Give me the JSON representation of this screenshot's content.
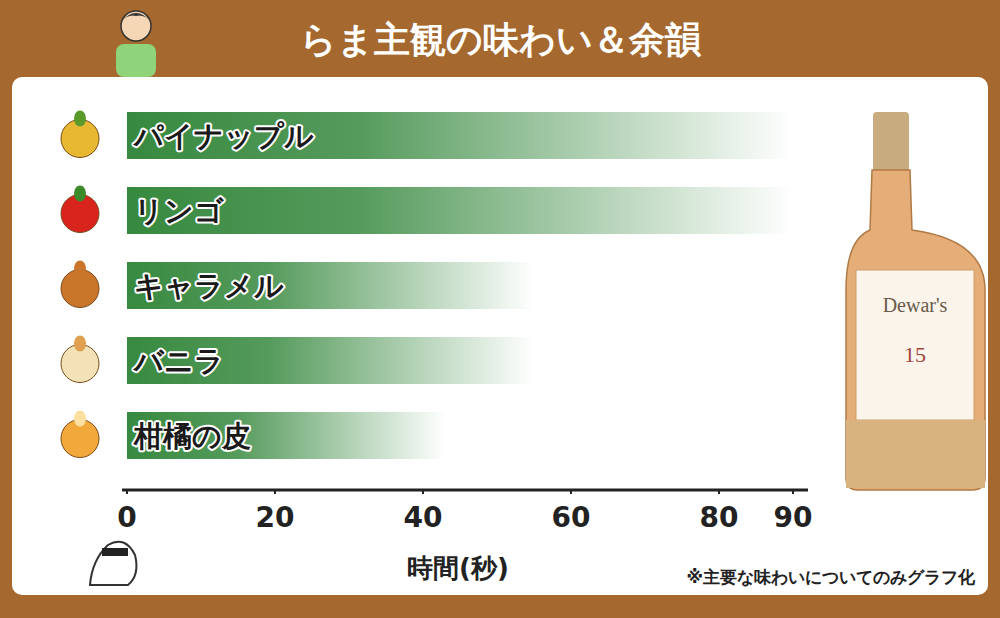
{
  "chart_data": {
    "type": "bar",
    "orientation": "horizontal",
    "title": "らま主観の味わい＆余韻",
    "categories": [
      "パイナップル",
      "リンゴ",
      "キャラメル",
      "バニラ",
      "柑橘の皮"
    ],
    "values": [
      90,
      90,
      55,
      55,
      43
    ],
    "color": "#37893f",
    "xlabel": "時間(秒)",
    "xlim": [
      0,
      90
    ],
    "xticks": [
      0,
      20,
      40,
      60,
      80,
      90
    ],
    "grid": false,
    "annotations": [
      "※主要な味わいについてのみグラフ化",
      "Dewar's",
      "15"
    ]
  }
}
